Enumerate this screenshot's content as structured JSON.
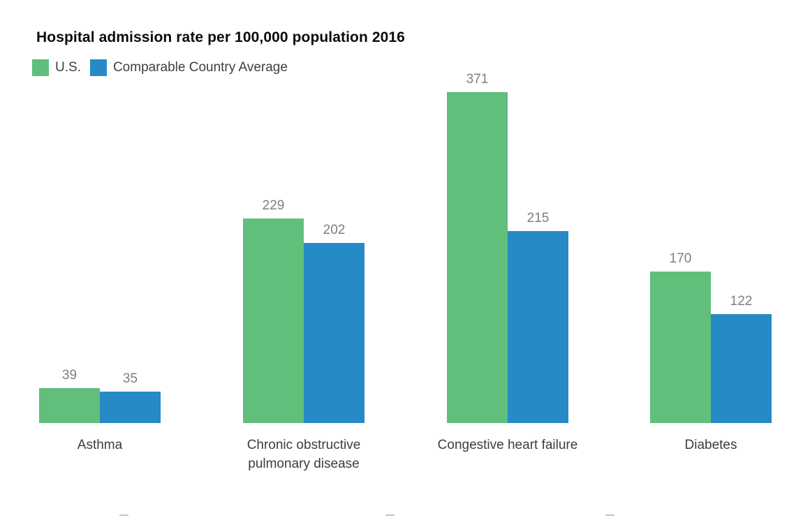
{
  "title": "Hospital admission rate per 100,000 population 2016",
  "legend": {
    "items": [
      {
        "label": "U.S.",
        "color": "#5FBF7B"
      },
      {
        "label": "Comparable Country Average",
        "color": "#268AC6"
      }
    ]
  },
  "chart_data": {
    "type": "bar",
    "title": "Hospital admission rate per 100,000 population 2016",
    "categories": [
      "Asthma",
      "Chronic obstructive pulmonary disease",
      "Congestive heart failure",
      "Diabetes"
    ],
    "category_label_lines": [
      [
        "Asthma"
      ],
      [
        "Chronic obstructive",
        "pulmonary disease"
      ],
      [
        "Congestive heart failure"
      ],
      [
        "Diabetes"
      ]
    ],
    "series": [
      {
        "name": "U.S.",
        "color": "#5FBF7B",
        "values": [
          39,
          229,
          371,
          170
        ]
      },
      {
        "name": "Comparable Country Average",
        "color": "#268AC6",
        "values": [
          35,
          202,
          215,
          122
        ]
      }
    ],
    "value_labels_shown": true,
    "xlabel": "",
    "ylabel": "",
    "ylim": [
      0,
      400
    ],
    "grid": false,
    "axes_hidden": true,
    "legend_position": "top-left"
  },
  "colors": {
    "title_text": "#0B0B0B",
    "legend_text": "#3C4045",
    "value_label_text": "#7B7E82",
    "category_label_text": "#3A3D41",
    "background": "#FFFFFF"
  }
}
